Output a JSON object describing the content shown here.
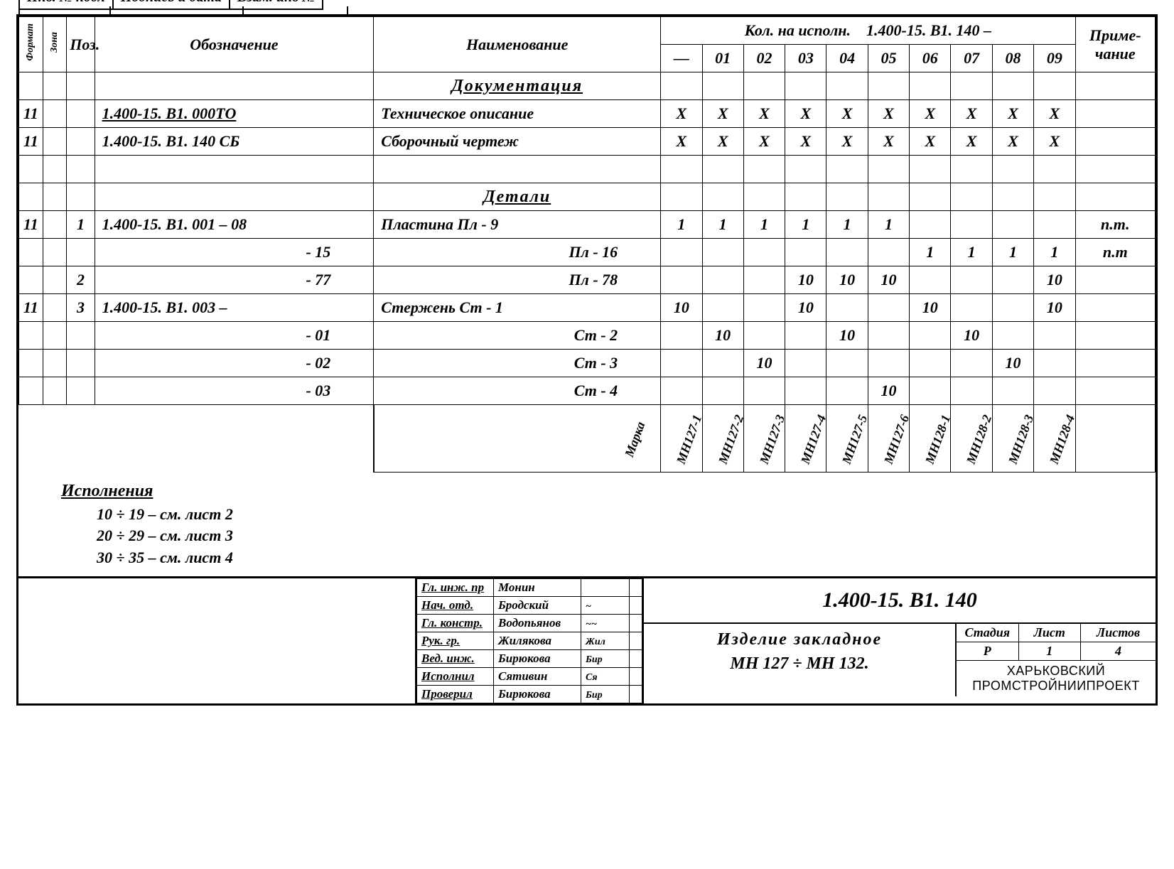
{
  "top_header": {
    "inv_no": "Инв. № подл",
    "sign_date": "Подпись и дата",
    "vzam": "Взам. инв №"
  },
  "columns": {
    "format": "Формат",
    "zone": "Зона",
    "pos": "Поз.",
    "designation": "Обозначение",
    "name": "Наименование",
    "qty_header": "Кол. на исполн.",
    "qty_doc": "1.400-15. В1. 140 –",
    "qty_cols": [
      "—",
      "01",
      "02",
      "03",
      "04",
      "05",
      "06",
      "07",
      "08",
      "09"
    ],
    "note": "Приме-чание"
  },
  "sections": {
    "docs": "Документация",
    "details": "Детали"
  },
  "rows": [
    {
      "fmt": "11",
      "zone": "",
      "pos": "",
      "desig": "1.400-15. В1. 000ТО",
      "name": "Техническое описание",
      "qty": [
        "Х",
        "Х",
        "Х",
        "Х",
        "Х",
        "Х",
        "Х",
        "Х",
        "Х",
        "Х"
      ],
      "note": "",
      "u": true
    },
    {
      "fmt": "11",
      "zone": "",
      "pos": "",
      "desig": "1.400-15. В1. 140 СБ",
      "name": "Сборочный чертеж",
      "qty": [
        "Х",
        "Х",
        "Х",
        "Х",
        "Х",
        "Х",
        "Х",
        "Х",
        "Х",
        "Х"
      ],
      "note": ""
    },
    {
      "fmt": "",
      "zone": "",
      "pos": "",
      "desig": "",
      "name": "",
      "qty": [
        "",
        "",
        "",
        "",
        "",
        "",
        "",
        "",
        "",
        ""
      ],
      "note": ""
    },
    {
      "fmt": "11",
      "zone": "",
      "pos": "1",
      "desig": "1.400-15. В1. 001 – 08",
      "name": "Пластина    Пл - 9",
      "qty": [
        "1",
        "1",
        "1",
        "1",
        "1",
        "1",
        "",
        "",
        "",
        ""
      ],
      "note": "п.т."
    },
    {
      "fmt": "",
      "zone": "",
      "pos": "",
      "desig": "- 15",
      "name": "Пл - 16",
      "qty": [
        "",
        "",
        "",
        "",
        "",
        "",
        "1",
        "1",
        "1",
        "1"
      ],
      "note": "п.т"
    },
    {
      "fmt": "",
      "zone": "",
      "pos": "2",
      "desig": "- 77",
      "name": "Пл - 78",
      "qty": [
        "",
        "",
        "",
        "10",
        "10",
        "10",
        "",
        "",
        "",
        "10"
      ],
      "note": ""
    },
    {
      "fmt": "11",
      "zone": "",
      "pos": "3",
      "desig": "1.400-15. В1. 003 –",
      "name": "Стержень    Ст - 1",
      "qty": [
        "10",
        "",
        "",
        "10",
        "",
        "",
        "10",
        "",
        "",
        "10"
      ],
      "note": ""
    },
    {
      "fmt": "",
      "zone": "",
      "pos": "",
      "desig": "- 01",
      "name": "Ст - 2",
      "qty": [
        "",
        "10",
        "",
        "",
        "10",
        "",
        "",
        "10",
        "",
        ""
      ],
      "note": ""
    },
    {
      "fmt": "",
      "zone": "",
      "pos": "",
      "desig": "- 02",
      "name": "Ст - 3",
      "qty": [
        "",
        "",
        "10",
        "",
        "",
        "",
        "",
        "",
        "10",
        ""
      ],
      "note": ""
    },
    {
      "fmt": "",
      "zone": "",
      "pos": "",
      "desig": "- 03",
      "name": "Ст - 4",
      "qty": [
        "",
        "",
        "",
        "",
        "",
        "10",
        "",
        "",
        "",
        ""
      ],
      "note": ""
    }
  ],
  "marks": {
    "label": "Марка",
    "values": [
      "МН127-1",
      "МН127-2",
      "МН127-3",
      "МН127-4",
      "МН127-5",
      "МН127-6",
      "МН128-1",
      "МН128-2",
      "МН128-3",
      "МН128-4"
    ]
  },
  "notes": {
    "title": "Исполнения",
    "lines": [
      "10 ÷ 19 – см. лист 2",
      "20 ÷ 29 – см. лист 3",
      "30 ÷ 35 – см. лист 4"
    ]
  },
  "title_block": {
    "roles": [
      {
        "role": "Гл. инж. пр",
        "name": "Монин",
        "sig": ""
      },
      {
        "role": "Нач. отд.",
        "name": "Бродский",
        "sig": "~"
      },
      {
        "role": "Гл. констр.",
        "name": "Водопьянов",
        "sig": "~~"
      },
      {
        "role": "Рук. гр.",
        "name": "Жилякова",
        "sig": "Жил"
      },
      {
        "role": "Вед. инж.",
        "name": "Бирюкова",
        "sig": "Бир"
      },
      {
        "role": "Исполнил",
        "name": "Сятивин",
        "sig": "Ся"
      },
      {
        "role": "Проверил",
        "name": "Бирюкова",
        "sig": "Бир"
      }
    ],
    "doc_number": "1.400-15. В1. 140",
    "doc_title_1": "Изделие закладное",
    "doc_title_2": "МН 127 ÷ МН 132.",
    "meta_headers": [
      "Стадия",
      "Лист",
      "Листов"
    ],
    "meta_values": [
      "Р",
      "1",
      "4"
    ],
    "organization": "ХАРЬКОВСКИЙ ПРОМСТРОЙНИИПРОЕКТ"
  },
  "colors": {
    "line": "#000000",
    "bg": "#ffffff"
  }
}
